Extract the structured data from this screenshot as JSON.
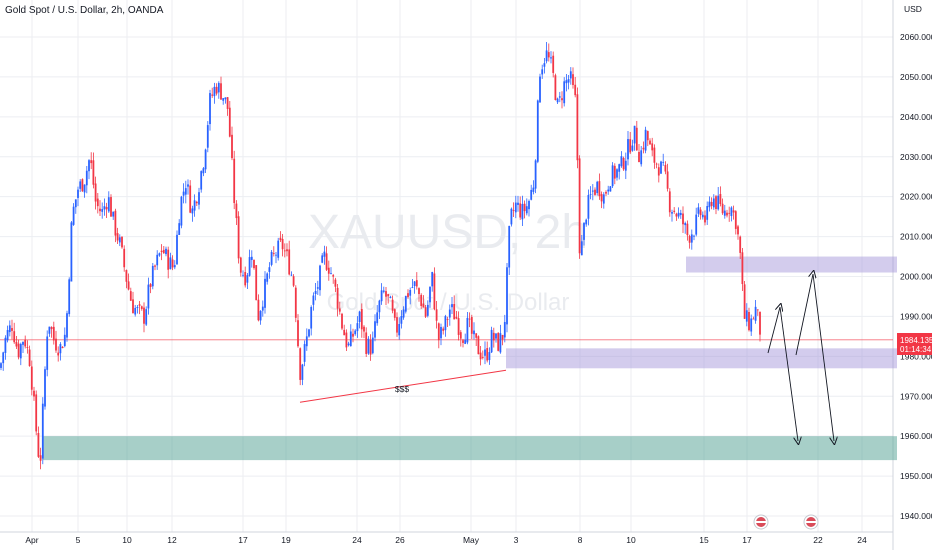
{
  "title": "Gold Spot / U.S. Dollar, 2h, OANDA",
  "watermark": {
    "symbol": "XAUUSD, 2h",
    "name": "Gold Spot / U.S. Dollar"
  },
  "colors": {
    "up": "#2962ff",
    "down": "#f23645",
    "zone_supply": "#9d8fd6",
    "zone_demand": "#5ea89a",
    "price_line": "#f23645",
    "grid": "#eceef2"
  },
  "price_tag": {
    "price": "1984.135",
    "countdown": "01:14:34"
  },
  "annotation_label": "$$$",
  "chart_data": {
    "type": "candlestick",
    "title": "Gold Spot / U.S. Dollar, 2h, OANDA",
    "y_unit": "USD",
    "ylim": [
      1937,
      2068
    ],
    "y_ticks": [
      "2060.000",
      "2050.000",
      "2040.000",
      "2030.000",
      "2020.000",
      "2010.000",
      "2000.000",
      "1990.000",
      "1980.000",
      "1970.000",
      "1960.000",
      "1950.000",
      "1940.000"
    ],
    "x_ticks": [
      "Apr",
      "5",
      "10",
      "12",
      "17",
      "19",
      "24",
      "26",
      "May",
      "3",
      "8",
      "10",
      "15",
      "17",
      "22",
      "24"
    ],
    "last_price": 1984.135,
    "close_path": [
      [
        0,
        1977
      ],
      [
        6,
        1985
      ],
      [
        12,
        1988
      ],
      [
        18,
        1981
      ],
      [
        24,
        1985
      ],
      [
        30,
        1979
      ],
      [
        36,
        1962
      ],
      [
        40,
        1952
      ],
      [
        44,
        1972
      ],
      [
        48,
        1990
      ],
      [
        54,
        1984
      ],
      [
        60,
        1982
      ],
      [
        66,
        1986
      ],
      [
        72,
        2015
      ],
      [
        78,
        2022
      ],
      [
        84,
        2024
      ],
      [
        90,
        2030
      ],
      [
        96,
        2018
      ],
      [
        102,
        2016
      ],
      [
        108,
        2020
      ],
      [
        114,
        2013
      ],
      [
        120,
        2008
      ],
      [
        126,
        2000
      ],
      [
        132,
        1993
      ],
      [
        138,
        1991
      ],
      [
        144,
        1990
      ],
      [
        150,
        1998
      ],
      [
        156,
        2003
      ],
      [
        162,
        2007
      ],
      [
        168,
        2004
      ],
      [
        174,
        2002
      ],
      [
        180,
        2018
      ],
      [
        186,
        2024
      ],
      [
        192,
        2016
      ],
      [
        198,
        2022
      ],
      [
        204,
        2030
      ],
      [
        210,
        2044
      ],
      [
        216,
        2048
      ],
      [
        222,
        2046
      ],
      [
        228,
        2042
      ],
      [
        234,
        2020
      ],
      [
        240,
        2002
      ],
      [
        246,
        2000
      ],
      [
        252,
        2007
      ],
      [
        258,
        1990
      ],
      [
        264,
        1996
      ],
      [
        270,
        2003
      ],
      [
        276,
        2006
      ],
      [
        282,
        2008
      ],
      [
        288,
        2004
      ],
      [
        294,
        1998
      ],
      [
        300,
        1976
      ],
      [
        306,
        1983
      ],
      [
        312,
        1993
      ],
      [
        318,
        1998
      ],
      [
        324,
        2005
      ],
      [
        330,
        2002
      ],
      [
        336,
        1996
      ],
      [
        342,
        1988
      ],
      [
        348,
        1982
      ],
      [
        354,
        1986
      ],
      [
        360,
        1990
      ],
      [
        366,
        1983
      ],
      [
        372,
        1982
      ],
      [
        378,
        1992
      ],
      [
        384,
        1996
      ],
      [
        390,
        1993
      ],
      [
        396,
        1986
      ],
      [
        402,
        1992
      ],
      [
        408,
        1996
      ],
      [
        414,
        1998
      ],
      [
        420,
        1995
      ],
      [
        426,
        1990
      ],
      [
        432,
        2000
      ],
      [
        438,
        1984
      ],
      [
        444,
        1987
      ],
      [
        450,
        1992
      ],
      [
        456,
        1990
      ],
      [
        462,
        1985
      ],
      [
        468,
        1988
      ],
      [
        474,
        1984
      ],
      [
        480,
        1981
      ],
      [
        486,
        1980
      ],
      [
        492,
        1985
      ],
      [
        498,
        1983
      ],
      [
        504,
        1986
      ],
      [
        510,
        2014
      ],
      [
        516,
        2018
      ],
      [
        522,
        2016
      ],
      [
        528,
        2018
      ],
      [
        534,
        2024
      ],
      [
        540,
        2052
      ],
      [
        546,
        2056
      ],
      [
        552,
        2052
      ],
      [
        558,
        2042
      ],
      [
        564,
        2048
      ],
      [
        570,
        2050
      ],
      [
        576,
        2043
      ],
      [
        580,
        2004
      ],
      [
        586,
        2016
      ],
      [
        592,
        2021
      ],
      [
        598,
        2023
      ],
      [
        604,
        2020
      ],
      [
        610,
        2025
      ],
      [
        616,
        2026
      ],
      [
        622,
        2028
      ],
      [
        628,
        2032
      ],
      [
        634,
        2036
      ],
      [
        640,
        2030
      ],
      [
        646,
        2036
      ],
      [
        652,
        2030
      ],
      [
        658,
        2028
      ],
      [
        664,
        2026
      ],
      [
        670,
        2018
      ],
      [
        676,
        2016
      ],
      [
        682,
        2014
      ],
      [
        688,
        2010
      ],
      [
        694,
        2012
      ],
      [
        700,
        2016
      ],
      [
        706,
        2014
      ],
      [
        712,
        2020
      ],
      [
        718,
        2018
      ],
      [
        724,
        2016
      ],
      [
        730,
        2018
      ],
      [
        736,
        2014
      ],
      [
        740,
        2006
      ],
      [
        744,
        1990
      ],
      [
        750,
        1988
      ],
      [
        756,
        1992
      ],
      [
        762,
        1984
      ]
    ],
    "zones": [
      {
        "label": "supply-zone-upper",
        "y_top": 2005,
        "y_bottom": 2001
      },
      {
        "label": "supply-zone-lower",
        "y_top": 1982,
        "y_bottom": 1977
      },
      {
        "label": "demand-zone",
        "y_top": 1960,
        "y_bottom": 1954
      }
    ],
    "trendline": {
      "label": "$$$",
      "from": [
        300,
        1968.5
      ],
      "to": [
        506,
        1976.5
      ]
    }
  }
}
